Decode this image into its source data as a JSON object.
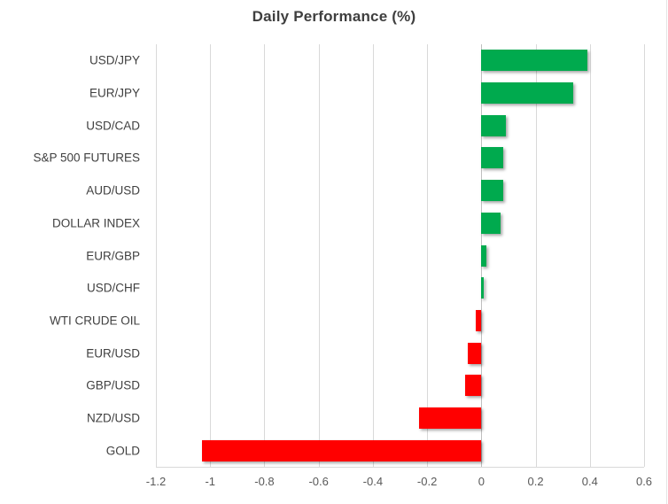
{
  "chart_data": {
    "type": "bar",
    "orientation": "horizontal",
    "title": "Daily Performance (%)",
    "categories": [
      "USD/JPY",
      "EUR/JPY",
      "USD/CAD",
      "S&P 500 FUTURES",
      "AUD/USD",
      "DOLLAR INDEX",
      "EUR/GBP",
      "USD/CHF",
      "WTI CRUDE OIL",
      "EUR/USD",
      "GBP/USD",
      "NZD/USD",
      "GOLD"
    ],
    "values": [
      0.39,
      0.34,
      0.09,
      0.08,
      0.08,
      0.07,
      0.02,
      0.01,
      -0.02,
      -0.05,
      -0.06,
      -0.23,
      -1.03
    ],
    "xlabel": "",
    "ylabel": "",
    "xlim": [
      -1.2,
      0.6
    ],
    "xticks": [
      -1.2,
      -1,
      -0.8,
      -0.6,
      -0.4,
      -0.2,
      0,
      0.2,
      0.4,
      0.6
    ],
    "xtick_labels": [
      "-1.2",
      "-1",
      "-0.8",
      "-0.6",
      "-0.4",
      "-0.2",
      "0",
      "0.2",
      "0.4",
      "0.6"
    ],
    "grid": true,
    "legend": "none",
    "positive_color": "#00AA4E",
    "negative_color": "#FF0000",
    "gridline_color": "#D9D9D9",
    "zero_axis_color": "#BFBFBF"
  }
}
